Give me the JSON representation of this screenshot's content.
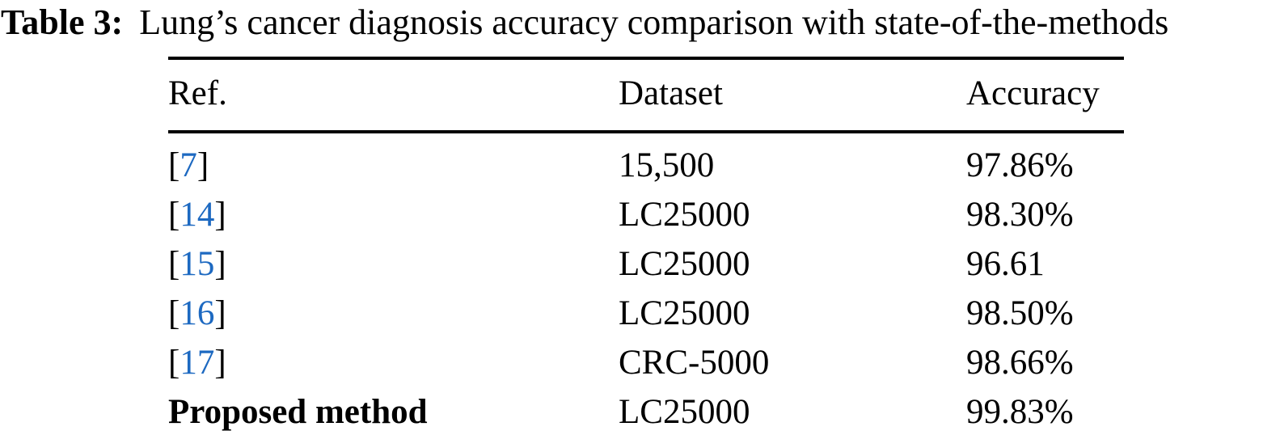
{
  "caption": {
    "label": "Table 3:",
    "text": "Lung’s cancer diagnosis accuracy comparison with state-of-the-methods"
  },
  "table": {
    "columns": [
      "Ref.",
      "Dataset",
      "Accuracy"
    ],
    "bracket_open": "[",
    "bracket_close": "]",
    "rows": [
      {
        "ref": "7",
        "ref_is_citation": true,
        "dataset": "15,500",
        "accuracy": "97.86%",
        "bold": false
      },
      {
        "ref": "14",
        "ref_is_citation": true,
        "dataset": "LC25000",
        "accuracy": "98.30%",
        "bold": false
      },
      {
        "ref": "15",
        "ref_is_citation": true,
        "dataset": "LC25000",
        "accuracy": "96.61",
        "bold": false
      },
      {
        "ref": "16",
        "ref_is_citation": true,
        "dataset": "LC25000",
        "accuracy": "98.50%",
        "bold": false
      },
      {
        "ref": "17",
        "ref_is_citation": true,
        "dataset": "CRC-5000",
        "accuracy": "98.66%",
        "bold": false
      },
      {
        "ref": "Proposed method",
        "ref_is_citation": false,
        "dataset": "LC25000",
        "accuracy": "99.83%",
        "bold": true
      }
    ]
  },
  "colors": {
    "citation_blue": "#1d69c1",
    "text": "#000000",
    "background": "#ffffff"
  }
}
